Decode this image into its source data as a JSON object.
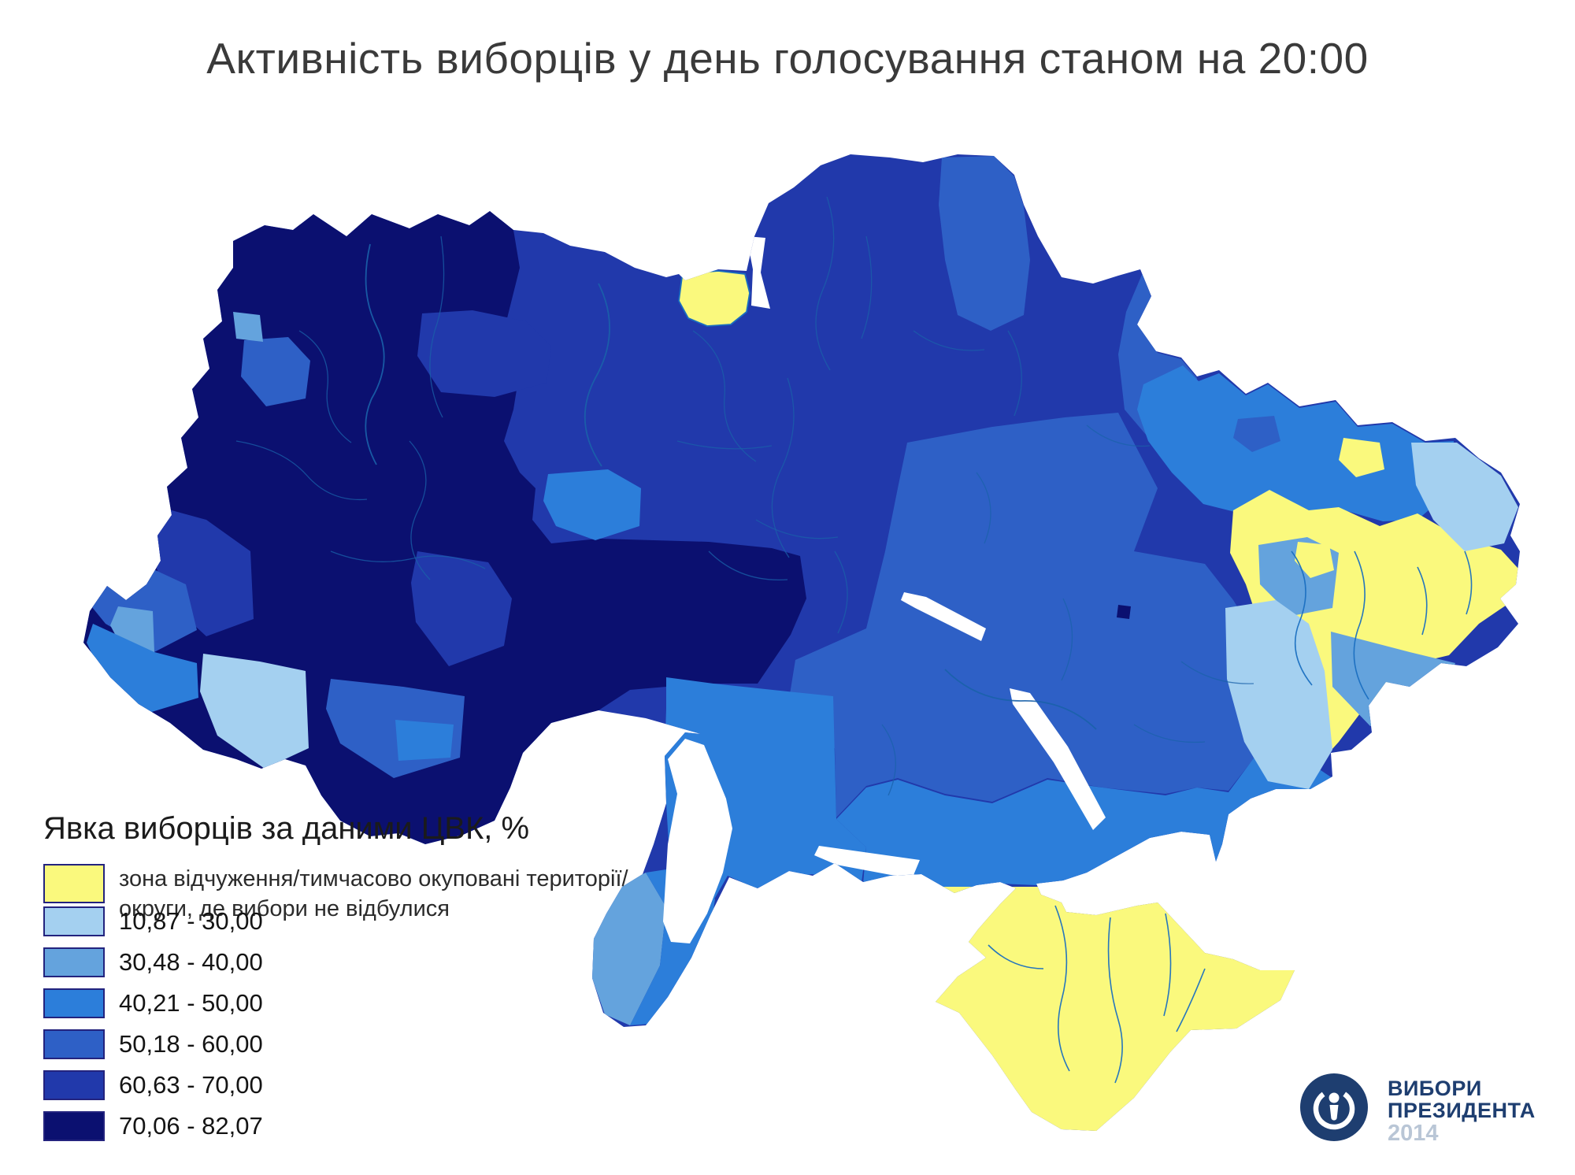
{
  "title": "Активність виборців у день голосування станом на 20:00",
  "legend": {
    "title": "Явка виборців за даними ЦВК, %",
    "no_election_label_1": "зона відчуження/тимчасово окуповані території/",
    "no_election_label_2": "округи, де вибори не відбулися",
    "no_election_color": "#FAF97D",
    "swatch_border": "#23237E",
    "classes": [
      {
        "label": "10,87 - 30,00",
        "color": "#A4D0F0"
      },
      {
        "label": "30,48 - 40,00",
        "color": "#64A3DD"
      },
      {
        "label": "40,21 - 50,00",
        "color": "#2C7EDA"
      },
      {
        "label": "50,18 - 60,00",
        "color": "#2E60C6"
      },
      {
        "label": "60,63 - 70,00",
        "color": "#2139AB"
      },
      {
        "label": "70,06 - 82,07",
        "color": "#0B1070"
      }
    ]
  },
  "map": {
    "palette": {
      "c1": "#A4D0F0",
      "c2": "#64A3DD",
      "c3": "#2C7EDA",
      "c4": "#2E60C6",
      "c5": "#2139AB",
      "c6": "#0B1070",
      "ne": "#FAF97D",
      "water": "#FFFFFF",
      "border": "#1A62AA",
      "borderYellow": "#1A6FC0"
    }
  },
  "logo": {
    "line1": "ВИБОРИ",
    "line2": "ПРЕЗИДЕНТА",
    "year": "2014",
    "color": "#1E3E70",
    "year_color": "#B9C6D6"
  }
}
